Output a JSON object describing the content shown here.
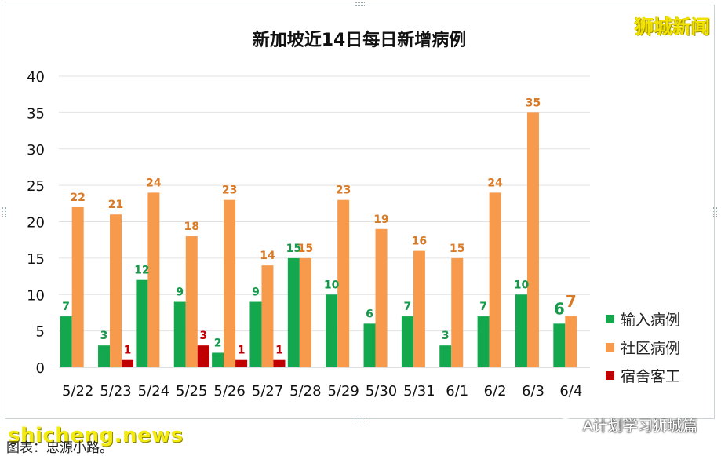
{
  "brand_watermark": "狮城新闻",
  "site_watermark": "shicheng.news",
  "account_watermark": "A计划学习狮城篇",
  "caption": "图表：忠源小路。",
  "chart_data": {
    "type": "bar",
    "title": "新加坡近14日每日新增病例",
    "categories": [
      "5/22",
      "5/23",
      "5/24",
      "5/25",
      "5/26",
      "5/27",
      "5/28",
      "5/29",
      "5/30",
      "5/31",
      "6/1",
      "6/2",
      "6/3",
      "6/4"
    ],
    "series": [
      {
        "name": "输入病例",
        "color": "#13a84e",
        "label_color": "#17994b",
        "values": [
          7,
          3,
          12,
          9,
          2,
          9,
          15,
          10,
          6,
          7,
          3,
          7,
          10,
          6
        ]
      },
      {
        "name": "社区病例",
        "color": "#f79a4c",
        "label_color": "#d97a26",
        "values": [
          22,
          21,
          24,
          18,
          23,
          14,
          15,
          23,
          19,
          16,
          15,
          24,
          35,
          7
        ]
      },
      {
        "name": "宿舍客工",
        "color": "#c00000",
        "label_color": "#c00000",
        "values": [
          0,
          1,
          0,
          3,
          1,
          1,
          0,
          0,
          0,
          0,
          0,
          0,
          0,
          0
        ]
      }
    ],
    "ylim": [
      0,
      40
    ],
    "yticks": [
      0,
      5,
      10,
      15,
      20,
      25,
      30,
      35,
      40
    ],
    "grid": true,
    "legend": "right"
  }
}
